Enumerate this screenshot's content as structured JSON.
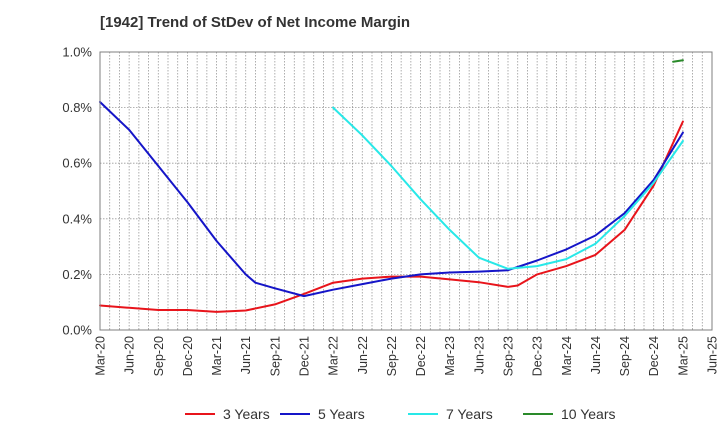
{
  "chart_data": {
    "type": "line",
    "title": "[1942]  Trend of StDev of Net Income Margin",
    "xlabel": "",
    "ylabel": "",
    "x_ticks": [
      "Mar-20",
      "Jun-20",
      "Sep-20",
      "Dec-20",
      "Mar-21",
      "Jun-21",
      "Sep-21",
      "Dec-21",
      "Mar-22",
      "Jun-22",
      "Sep-22",
      "Dec-22",
      "Mar-23",
      "Jun-23",
      "Sep-23",
      "Dec-23",
      "Mar-24",
      "Jun-24",
      "Sep-24",
      "Dec-24",
      "Mar-25",
      "Jun-25"
    ],
    "y_ticks": [
      "0.0%",
      "0.2%",
      "0.4%",
      "0.6%",
      "0.8%",
      "1.0%"
    ],
    "ylim": [
      0,
      1.0
    ],
    "y_unit": "%",
    "grid": true,
    "legend_position": "bottom",
    "series": [
      {
        "name": "3 Years",
        "color": "#e8141b",
        "x": [
          "Mar-20",
          "Jun-20",
          "Sep-20",
          "Dec-20",
          "Mar-21",
          "Jun-21",
          "Sep-21",
          "Dec-21",
          "Mar-22",
          "Jun-22",
          "Sep-22",
          "Dec-22",
          "Mar-23",
          "Jun-23",
          "Sep-23",
          "Oct-23",
          "Dec-23",
          "Mar-24",
          "Jun-24",
          "Sep-24",
          "Dec-24",
          "Mar-25"
        ],
        "values": [
          0.088,
          0.08,
          0.072,
          0.072,
          0.065,
          0.07,
          0.092,
          0.13,
          0.17,
          0.185,
          0.192,
          0.192,
          0.182,
          0.172,
          0.155,
          0.16,
          0.2,
          0.23,
          0.27,
          0.36,
          0.52,
          0.75
        ]
      },
      {
        "name": "5 Years",
        "color": "#1515c8",
        "x": [
          "Mar-20",
          "Jun-20",
          "Sep-20",
          "Dec-20",
          "Mar-21",
          "Jun-21",
          "Jul-21",
          "Sep-21",
          "Dec-21",
          "Mar-22",
          "Jun-22",
          "Sep-22",
          "Dec-22",
          "Mar-23",
          "Jun-23",
          "Sep-23",
          "Dec-23",
          "Mar-24",
          "Jun-24",
          "Sep-24",
          "Dec-24",
          "Mar-25"
        ],
        "values": [
          0.82,
          0.72,
          0.59,
          0.46,
          0.32,
          0.2,
          0.17,
          0.15,
          0.122,
          0.145,
          0.165,
          0.185,
          0.2,
          0.207,
          0.21,
          0.215,
          0.25,
          0.29,
          0.34,
          0.42,
          0.54,
          0.71
        ]
      },
      {
        "name": "7 Years",
        "color": "#28e8e8",
        "x": [
          "Mar-22",
          "Jun-22",
          "Sep-22",
          "Dec-22",
          "Mar-23",
          "Jun-23",
          "Sep-23",
          "Dec-23",
          "Mar-24",
          "Jun-24",
          "Sep-24",
          "Dec-24",
          "Mar-25"
        ],
        "values": [
          0.8,
          0.7,
          0.59,
          0.47,
          0.36,
          0.26,
          0.22,
          0.23,
          0.255,
          0.31,
          0.41,
          0.53,
          0.68
        ]
      },
      {
        "name": "10 Years",
        "color": "#2a8a2a",
        "x": [
          "Feb-25",
          "Mar-25"
        ],
        "values": [
          0.965,
          0.97
        ]
      }
    ]
  }
}
